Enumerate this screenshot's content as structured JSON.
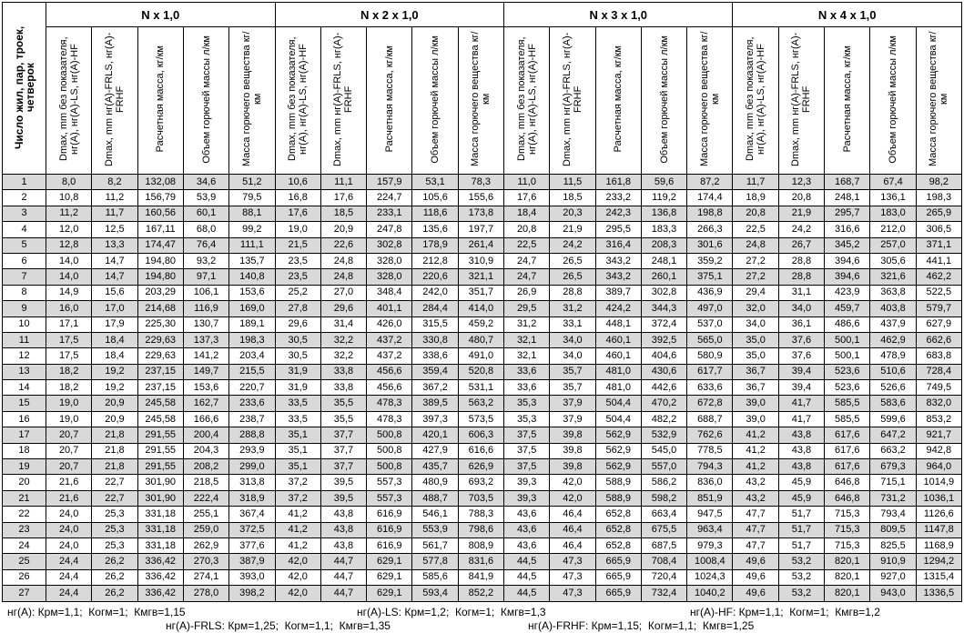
{
  "header": {
    "first_column": "Число жил, пар, троек, четверок",
    "groups": [
      "N x 1,0",
      "N x 2 x 1,0",
      "N x 3 x 1,0",
      "N x 4 x 1,0"
    ],
    "subheaders": [
      "Dmax, mm без показателя, нг(А), нг(А)-LS, нг(А)-HF",
      "Dmax, mm нг(А)-FRLS, нг(А)-FRHF",
      "Расчетная масса, кг/км",
      "Объем горючей массы л/км",
      "Масса горючего вещества кг/км"
    ]
  },
  "table": {
    "rows": [
      [
        "1",
        "8,0",
        "8,2",
        "132,08",
        "34,6",
        "51,2",
        "10,6",
        "11,1",
        "157,9",
        "53,1",
        "78,3",
        "11,0",
        "11,5",
        "161,8",
        "59,6",
        "87,2",
        "11,7",
        "12,3",
        "168,7",
        "67,4",
        "98,2"
      ],
      [
        "2",
        "10,8",
        "11,2",
        "156,79",
        "53,9",
        "79,5",
        "16,8",
        "17,6",
        "224,7",
        "105,6",
        "155,6",
        "17,6",
        "18,5",
        "233,2",
        "119,2",
        "174,4",
        "18,9",
        "20,8",
        "248,1",
        "136,1",
        "198,3"
      ],
      [
        "3",
        "11,2",
        "11,7",
        "160,56",
        "60,1",
        "88,1",
        "17,6",
        "18,5",
        "233,1",
        "118,6",
        "173,8",
        "18,4",
        "20,3",
        "242,3",
        "136,8",
        "198,8",
        "20,8",
        "21,9",
        "295,7",
        "183,0",
        "265,9"
      ],
      [
        "4",
        "12,0",
        "12,5",
        "167,11",
        "68,0",
        "99,2",
        "19,0",
        "20,9",
        "247,8",
        "135,6",
        "197,7",
        "20,8",
        "21,9",
        "295,5",
        "183,3",
        "266,3",
        "22,5",
        "24,2",
        "316,6",
        "212,0",
        "306,5"
      ],
      [
        "5",
        "12,8",
        "13,3",
        "174,47",
        "76,4",
        "111,1",
        "21,5",
        "22,6",
        "302,8",
        "178,9",
        "261,4",
        "22,5",
        "24,2",
        "316,4",
        "208,3",
        "301,6",
        "24,8",
        "26,7",
        "345,2",
        "257,0",
        "371,1"
      ],
      [
        "6",
        "14,0",
        "14,7",
        "194,80",
        "93,2",
        "135,7",
        "23,5",
        "24,8",
        "328,0",
        "212,8",
        "310,9",
        "24,7",
        "26,5",
        "343,2",
        "248,1",
        "359,2",
        "27,2",
        "28,8",
        "394,6",
        "305,6",
        "441,1"
      ],
      [
        "7",
        "14,0",
        "14,7",
        "194,80",
        "97,1",
        "140,8",
        "23,5",
        "24,8",
        "328,0",
        "220,6",
        "321,1",
        "24,7",
        "26,5",
        "343,2",
        "260,1",
        "375,1",
        "27,2",
        "28,8",
        "394,6",
        "321,6",
        "462,2"
      ],
      [
        "8",
        "14,9",
        "15,6",
        "203,29",
        "106,1",
        "153,6",
        "25,2",
        "27,0",
        "348,4",
        "242,0",
        "351,7",
        "26,9",
        "28,8",
        "389,7",
        "302,8",
        "436,9",
        "29,4",
        "31,1",
        "423,9",
        "363,8",
        "522,5"
      ],
      [
        "9",
        "16,0",
        "17,0",
        "214,68",
        "116,9",
        "169,0",
        "27,8",
        "29,6",
        "401,1",
        "284,4",
        "414,0",
        "29,5",
        "31,2",
        "424,2",
        "344,3",
        "497,0",
        "32,0",
        "34,0",
        "459,7",
        "403,8",
        "579,7"
      ],
      [
        "10",
        "17,1",
        "17,9",
        "225,30",
        "130,7",
        "189,1",
        "29,6",
        "31,4",
        "426,0",
        "315,5",
        "459,2",
        "31,2",
        "33,1",
        "448,1",
        "372,4",
        "537,0",
        "34,0",
        "36,1",
        "486,6",
        "437,9",
        "627,9"
      ],
      [
        "11",
        "17,5",
        "18,4",
        "229,63",
        "137,3",
        "198,3",
        "30,5",
        "32,2",
        "437,2",
        "330,8",
        "480,7",
        "32,1",
        "34,0",
        "460,1",
        "392,5",
        "565,0",
        "35,0",
        "37,6",
        "500,1",
        "462,9",
        "662,6"
      ],
      [
        "12",
        "17,5",
        "18,4",
        "229,63",
        "141,2",
        "203,4",
        "30,5",
        "32,2",
        "437,2",
        "338,6",
        "491,0",
        "32,1",
        "34,0",
        "460,1",
        "404,6",
        "580,9",
        "35,0",
        "37,6",
        "500,1",
        "478,9",
        "683,8"
      ],
      [
        "13",
        "18,2",
        "19,2",
        "237,15",
        "149,7",
        "215,5",
        "31,9",
        "33,8",
        "456,6",
        "359,4",
        "520,8",
        "33,6",
        "35,7",
        "481,0",
        "430,6",
        "617,7",
        "36,7",
        "39,4",
        "523,6",
        "510,6",
        "728,4"
      ],
      [
        "14",
        "18,2",
        "19,2",
        "237,15",
        "153,6",
        "220,7",
        "31,9",
        "33,8",
        "456,6",
        "367,2",
        "531,1",
        "33,6",
        "35,7",
        "481,0",
        "442,6",
        "633,6",
        "36,7",
        "39,4",
        "523,6",
        "526,6",
        "749,5"
      ],
      [
        "15",
        "19,0",
        "20,9",
        "245,58",
        "162,7",
        "233,6",
        "33,5",
        "35,5",
        "478,3",
        "389,5",
        "563,2",
        "35,3",
        "37,9",
        "504,4",
        "470,2",
        "672,8",
        "39,0",
        "41,7",
        "585,5",
        "583,6",
        "832,0"
      ],
      [
        "16",
        "19,0",
        "20,9",
        "245,58",
        "166,6",
        "238,7",
        "33,5",
        "35,5",
        "478,3",
        "397,3",
        "573,5",
        "35,3",
        "37,9",
        "504,4",
        "482,2",
        "688,7",
        "39,0",
        "41,7",
        "585,5",
        "599,6",
        "853,2"
      ],
      [
        "17",
        "20,7",
        "21,8",
        "291,55",
        "200,4",
        "288,8",
        "35,1",
        "37,7",
        "500,8",
        "420,1",
        "606,3",
        "37,5",
        "39,8",
        "562,9",
        "532,9",
        "762,6",
        "41,2",
        "43,8",
        "617,6",
        "647,2",
        "921,7"
      ],
      [
        "18",
        "20,7",
        "21,8",
        "291,55",
        "204,3",
        "293,9",
        "35,1",
        "37,7",
        "500,8",
        "427,9",
        "616,6",
        "37,5",
        "39,8",
        "562,9",
        "545,0",
        "778,5",
        "41,2",
        "43,8",
        "617,6",
        "663,2",
        "942,8"
      ],
      [
        "19",
        "20,7",
        "21,8",
        "291,55",
        "208,2",
        "299,0",
        "35,1",
        "37,7",
        "500,8",
        "435,7",
        "626,9",
        "37,5",
        "39,8",
        "562,9",
        "557,0",
        "794,3",
        "41,2",
        "43,8",
        "617,6",
        "679,3",
        "964,0"
      ],
      [
        "20",
        "21,6",
        "22,7",
        "301,90",
        "218,5",
        "313,8",
        "37,2",
        "39,5",
        "557,3",
        "480,9",
        "693,2",
        "39,3",
        "42,0",
        "588,9",
        "586,2",
        "836,0",
        "43,2",
        "45,9",
        "646,8",
        "715,1",
        "1014,9"
      ],
      [
        "21",
        "21,6",
        "22,7",
        "301,90",
        "222,4",
        "318,9",
        "37,2",
        "39,5",
        "557,3",
        "488,7",
        "703,5",
        "39,3",
        "42,0",
        "588,9",
        "598,2",
        "851,9",
        "43,2",
        "45,9",
        "646,8",
        "731,2",
        "1036,1"
      ],
      [
        "22",
        "24,0",
        "25,3",
        "331,18",
        "255,1",
        "367,4",
        "41,2",
        "43,8",
        "616,9",
        "546,1",
        "788,3",
        "43,6",
        "46,4",
        "652,8",
        "663,4",
        "947,5",
        "47,7",
        "51,7",
        "715,3",
        "793,4",
        "1126,6"
      ],
      [
        "23",
        "24,0",
        "25,3",
        "331,18",
        "259,0",
        "372,5",
        "41,2",
        "43,8",
        "616,9",
        "553,9",
        "798,6",
        "43,6",
        "46,4",
        "652,8",
        "675,5",
        "963,4",
        "47,7",
        "51,7",
        "715,3",
        "809,5",
        "1147,8"
      ],
      [
        "24",
        "24,0",
        "25,3",
        "331,18",
        "262,9",
        "377,6",
        "41,2",
        "43,8",
        "616,9",
        "561,7",
        "808,9",
        "43,6",
        "46,4",
        "652,8",
        "687,5",
        "979,3",
        "47,7",
        "51,7",
        "715,3",
        "825,5",
        "1168,9"
      ],
      [
        "25",
        "24,4",
        "26,2",
        "336,42",
        "270,3",
        "387,9",
        "42,0",
        "44,7",
        "629,1",
        "577,8",
        "831,6",
        "44,5",
        "47,3",
        "665,9",
        "708,4",
        "1008,4",
        "49,6",
        "53,2",
        "820,1",
        "910,9",
        "1294,2"
      ],
      [
        "26",
        "24,4",
        "26,2",
        "336,42",
        "274,1",
        "393,0",
        "42,0",
        "44,7",
        "629,1",
        "585,6",
        "841,9",
        "44,5",
        "47,3",
        "665,9",
        "720,4",
        "1024,3",
        "49,6",
        "53,2",
        "820,1",
        "927,0",
        "1315,4"
      ],
      [
        "27",
        "24,4",
        "26,2",
        "336,42",
        "278,0",
        "398,2",
        "42,0",
        "44,7",
        "629,1",
        "593,4",
        "852,2",
        "44,5",
        "47,3",
        "665,9",
        "732,4",
        "1040,2",
        "49,6",
        "53,2",
        "820,1",
        "943,0",
        "1336,5"
      ]
    ]
  },
  "footnotes": [
    "нг(А): Крм=1,1;  Когм=1;  Кмгв=1,15",
    "нг(А)-LS: Крм=1,2;  Когм=1;  Кмгв=1,3",
    "нг(А)-HF: Крм=1,1;  Когм=1;  Кмгв=1,2",
    "нг(А)-FRLS: Крм=1,25;  Когм=1,1;  Кмгв=1,35",
    "нг(А)-FRHF: Крм=1,15;  Когм=1,1;  Кмгв=1,25"
  ]
}
